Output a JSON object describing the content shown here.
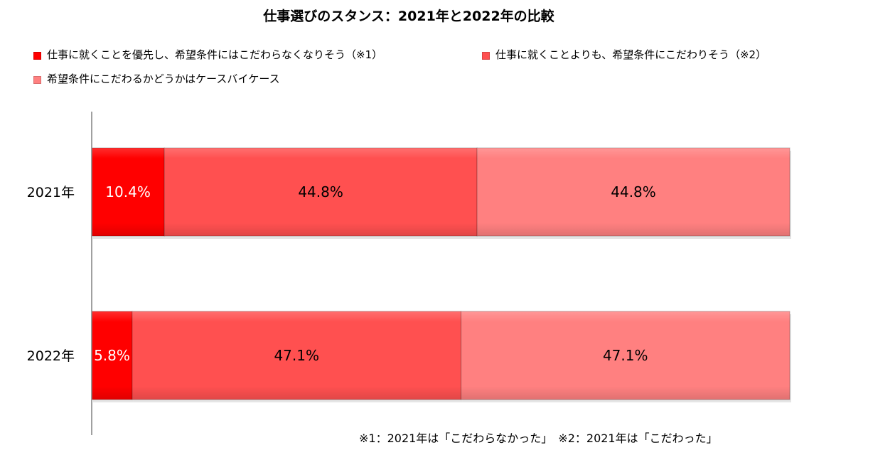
{
  "chart_data": {
    "type": "bar",
    "orientation": "horizontal",
    "stacked": true,
    "title": "仕事選びのスタンス：2021年と2022年の比較",
    "categories": [
      "2021年",
      "2022年"
    ],
    "series": [
      {
        "name": "仕事に就くことを優先し、希望条件にはこだわらなくなりそう（※1）",
        "color": "#ff0000",
        "label_color": "#ffffff",
        "values": [
          10.4,
          5.8
        ],
        "labels": [
          "10.4%",
          "5.8%"
        ]
      },
      {
        "name": "仕事に就くことよりも、希望条件にこだわりそう（※2）",
        "color": "#ff5050",
        "label_color": "#000000",
        "values": [
          44.8,
          47.1
        ],
        "labels": [
          "44.8%",
          "47.1%"
        ]
      },
      {
        "name": "希望条件にこだわるかどうかはケースバイケース",
        "color": "#ff8080",
        "label_color": "#000000",
        "values": [
          44.8,
          47.1
        ],
        "labels": [
          "44.8%",
          "47.1%"
        ]
      }
    ],
    "xlim": [
      0,
      100
    ],
    "grid": false,
    "legend_position": "top",
    "footnote": "※1：2021年は「こだわらなかった」　※2：2021年は「こだわった」"
  }
}
